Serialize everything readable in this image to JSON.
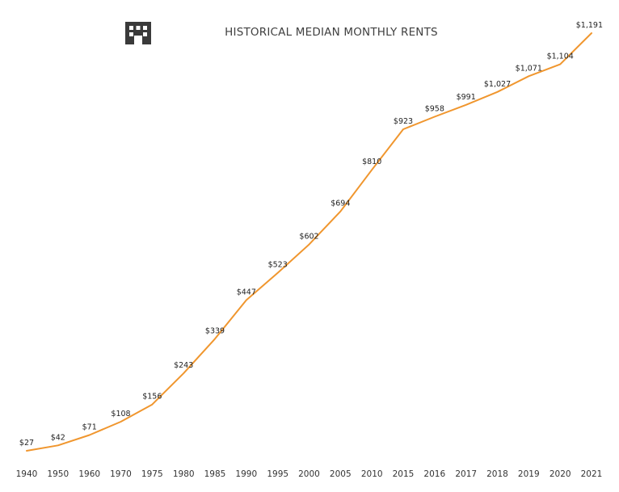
{
  "chart_data": {
    "type": "line",
    "title": "HISTORICAL MEDIAN MONTHLY RENTS",
    "xlabel": "",
    "ylabel": "",
    "categories": [
      "1940",
      "1950",
      "1960",
      "1970",
      "1975",
      "1980",
      "1985",
      "1990",
      "1995",
      "2000",
      "2005",
      "2010",
      "2015",
      "2016",
      "2017",
      "2018",
      "2019",
      "2020",
      "2021"
    ],
    "series": [
      {
        "values": [
          27,
          42,
          71,
          108,
          156,
          243,
          339,
          447,
          523,
          602,
          694,
          810,
          923,
          958,
          991,
          1027,
          1071,
          1104,
          1191
        ],
        "labels": [
          "$27",
          "$42",
          "$71",
          "$108",
          "$156",
          "$243",
          "$339",
          "$447",
          "$523",
          "$602",
          "$694",
          "$810",
          "$923",
          "$958",
          "$991",
          "$1,027",
          "$1,071",
          "$1,104",
          "$1,191"
        ]
      }
    ],
    "ylim": [
      0,
      1200
    ],
    "grid": false,
    "legend": "none",
    "line_color": "#F0962E",
    "icon": "building-icon"
  }
}
